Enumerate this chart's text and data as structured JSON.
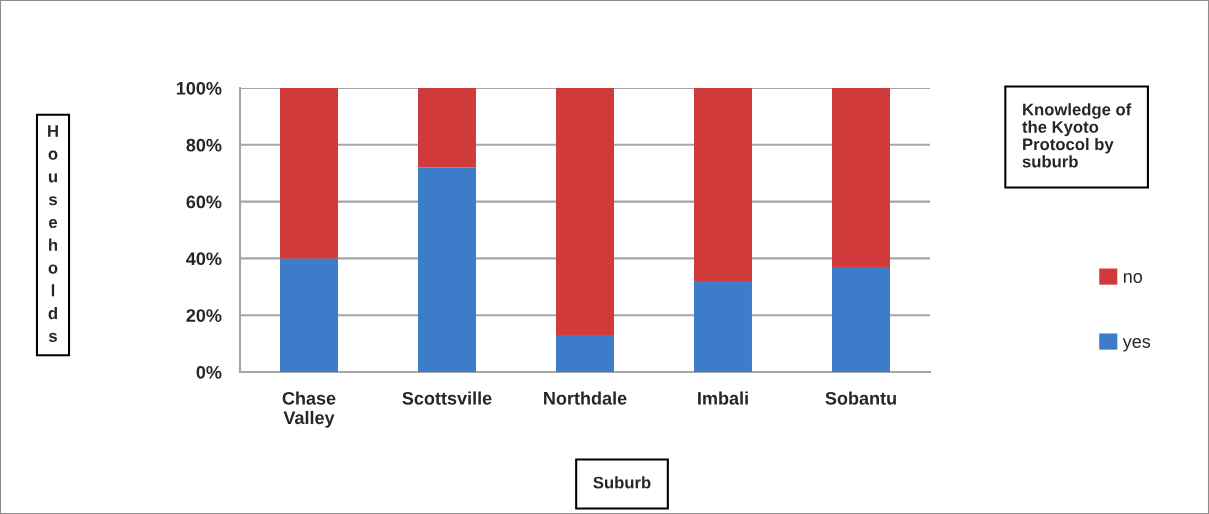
{
  "chart_data": {
    "type": "bar",
    "stacked": true,
    "categories": [
      "Chase Valley",
      "Scottsville",
      "Northdale",
      "Imbali",
      "Sobantu"
    ],
    "series": [
      {
        "name": "yes",
        "color": "#3d7cc9",
        "values": [
          40,
          72,
          13,
          32,
          37
        ]
      },
      {
        "name": "no",
        "color": "#d03a3a",
        "values": [
          60,
          28,
          87,
          68,
          63
        ]
      }
    ],
    "ylim": [
      0,
      100
    ],
    "yticks": [
      {
        "value": 0,
        "label": "0%"
      },
      {
        "value": 20,
        "label": "20%"
      },
      {
        "value": 40,
        "label": "40%"
      },
      {
        "value": 60,
        "label": "60%"
      },
      {
        "value": 80,
        "label": "80%"
      },
      {
        "value": 100,
        "label": "100%"
      }
    ],
    "grid": "y",
    "legend": "right",
    "legend_title": "Knowledge of the Kyoto Protocol by suburb",
    "xlabel": "Suburb",
    "ylabel": "Households"
  }
}
